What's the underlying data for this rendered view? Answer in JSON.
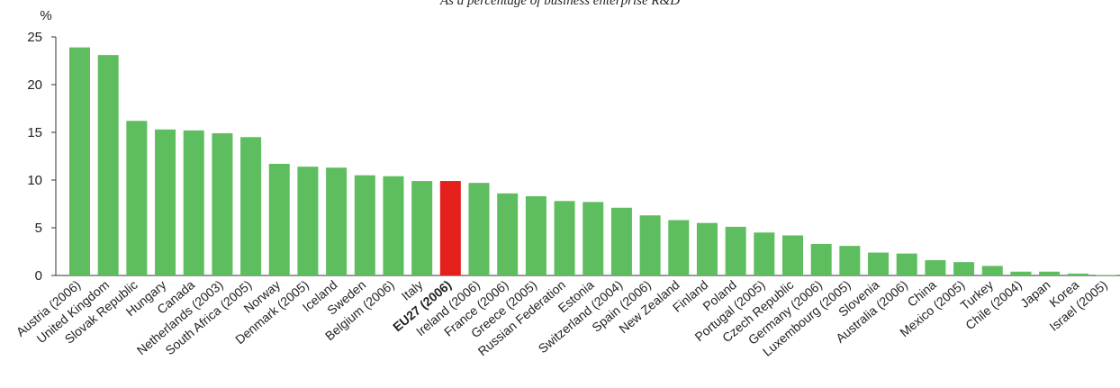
{
  "chart_data": {
    "type": "bar",
    "subtitle": "As a percentage of business enterprise R&D",
    "ylabel": "%",
    "ylim": [
      0,
      25
    ],
    "yticks": [
      0,
      5,
      10,
      15,
      20,
      25
    ],
    "grid": false,
    "categories": [
      "Austria (2006)",
      "United Kingdom",
      "Slovak Republic",
      "Hungary",
      "Canada",
      "Netherlands (2003)",
      "South Africa (2005)",
      "Norway",
      "Denmark (2005)",
      "Iceland",
      "Sweden",
      "Belgium (2006)",
      "Italy",
      "EU27 (2006)",
      "Ireland (2006)",
      "France (2006)",
      "Greece (2005)",
      "Russian Federation",
      "Estonia",
      "Switzerland (2004)",
      "Spain (2006)",
      "New Zealand",
      "Finland",
      "Poland",
      "Portugal (2005)",
      "Czech Republic",
      "Germany (2006)",
      "Luxembourg (2005)",
      "Slovenia",
      "Australia (2006)",
      "China",
      "Mexico (2005)",
      "Turkey",
      "Chile (2004)",
      "Japan",
      "Korea",
      "Israel (2005)"
    ],
    "values": [
      23.9,
      23.1,
      16.2,
      15.3,
      15.2,
      14.9,
      14.5,
      11.7,
      11.4,
      11.3,
      10.5,
      10.4,
      9.9,
      9.9,
      9.7,
      8.6,
      8.3,
      7.8,
      7.7,
      7.1,
      6.3,
      5.8,
      5.5,
      5.1,
      4.5,
      4.2,
      3.3,
      3.1,
      2.4,
      2.3,
      1.6,
      1.4,
      1.0,
      0.4,
      0.4,
      0.2,
      0.05
    ],
    "highlight_index": 13,
    "colors": {
      "bar": "#5ebd5e",
      "highlight": "#e3201b",
      "axis": "#333333"
    }
  }
}
